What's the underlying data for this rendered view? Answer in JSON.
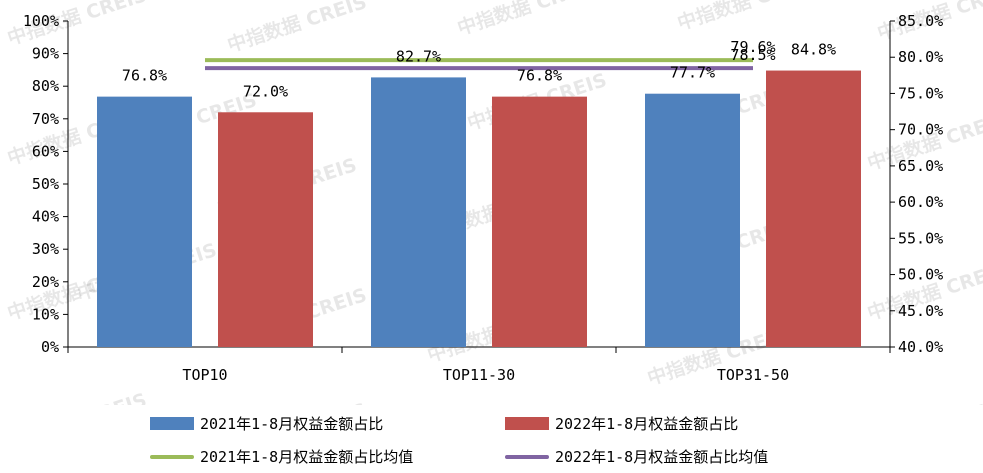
{
  "watermark": "中指数据 CREIS",
  "chart_data": {
    "type": "bar",
    "categories": [
      "TOP10",
      "TOP11-30",
      "TOP31-50"
    ],
    "series": [
      {
        "name": "2021年1-8月权益金额占比",
        "kind": "bar",
        "axis": "left",
        "color": "#4f81bd",
        "values": [
          76.8,
          82.7,
          77.7
        ],
        "labels": [
          "76.8%",
          "82.7%",
          "77.7%"
        ]
      },
      {
        "name": "2022年1-8月权益金额占比",
        "kind": "bar",
        "axis": "left",
        "color": "#c0504d",
        "values": [
          72.0,
          76.8,
          84.8
        ],
        "labels": [
          "72.0%",
          "76.8%",
          "84.8%"
        ]
      },
      {
        "name": "2021年1-8月权益金额占比均值",
        "kind": "line",
        "axis": "right",
        "color": "#9bbb59",
        "values": [
          79.6,
          79.6,
          79.6
        ],
        "labels": [
          "",
          "",
          "79.6%"
        ]
      },
      {
        "name": "2022年1-8月权益金额占比均值",
        "kind": "line",
        "axis": "right",
        "color": "#8064a2",
        "values": [
          78.5,
          78.5,
          78.5
        ],
        "labels": [
          "",
          "",
          "78.5%"
        ]
      }
    ],
    "left_axis": {
      "ylim": [
        0,
        100
      ],
      "ticks": [
        "0%",
        "10%",
        "20%",
        "30%",
        "40%",
        "50%",
        "60%",
        "70%",
        "80%",
        "90%",
        "100%"
      ]
    },
    "right_axis": {
      "ylim": [
        40,
        85
      ],
      "ticks": [
        "40.0%",
        "45.0%",
        "50.0%",
        "55.0%",
        "60.0%",
        "65.0%",
        "70.0%",
        "75.0%",
        "80.0%",
        "85.0%"
      ]
    },
    "grid": false,
    "legend_position": "bottom"
  }
}
